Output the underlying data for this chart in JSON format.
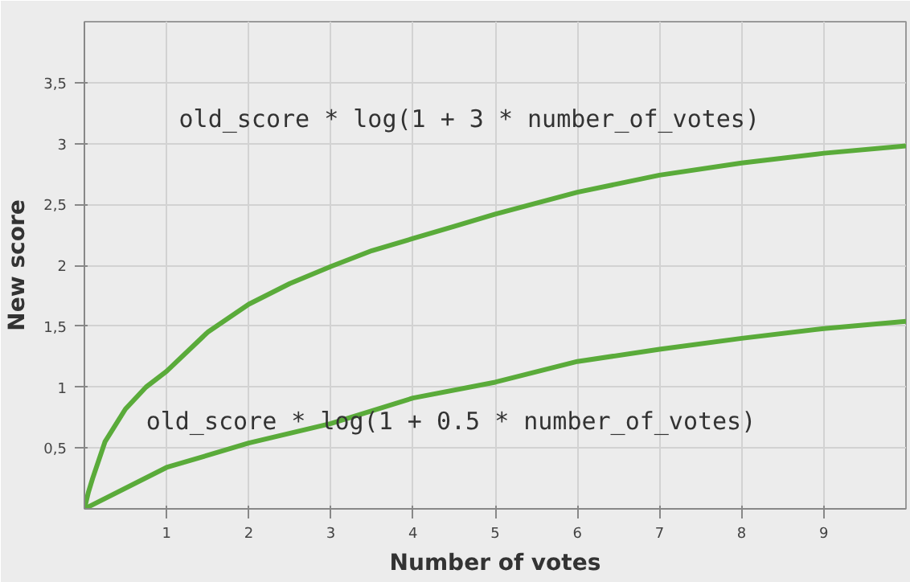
{
  "chart_data": {
    "type": "line",
    "xlabel": "Number of votes",
    "ylabel": "New score",
    "xlim": [
      0,
      10
    ],
    "ylim": [
      0,
      4
    ],
    "xticks": [
      1,
      2,
      3,
      4,
      5,
      6,
      7,
      8,
      9
    ],
    "yticks": [
      {
        "value": 0.5,
        "label": "0,5"
      },
      1,
      {
        "value": 1.5,
        "label": "1,5"
      },
      2,
      {
        "value": 2.5,
        "label": "2,5"
      },
      3,
      {
        "value": 3.5,
        "label": "3,5"
      }
    ],
    "grid": true,
    "marker": "none",
    "line_style": "solid",
    "annotations": [
      "old_score * log(1 + 3 * number_of_votes)",
      "old_score * log(1 + 0.5 * number_of_votes)"
    ],
    "series": [
      {
        "color": "#5aab3a",
        "x": [
          0,
          0.05,
          0.1,
          0.25,
          0.5,
          0.75,
          1,
          1.5,
          2,
          2.5,
          3,
          3.5,
          4,
          4.5,
          5,
          6,
          7,
          8,
          9,
          10
        ],
        "values": [
          0,
          0.14,
          0.25,
          0.55,
          0.82,
          1.0,
          1.13,
          1.45,
          1.68,
          1.85,
          1.99,
          2.12,
          2.22,
          2.32,
          2.42,
          2.6,
          2.74,
          2.84,
          2.92,
          2.98
        ]
      },
      {
        "color": "#5aab3a",
        "x": [
          0,
          1,
          2,
          3,
          4,
          5,
          6,
          7,
          8,
          9,
          10
        ],
        "values": [
          0,
          0.34,
          0.54,
          0.7,
          0.91,
          1.04,
          1.21,
          1.31,
          1.4,
          1.48,
          1.54
        ]
      }
    ]
  }
}
